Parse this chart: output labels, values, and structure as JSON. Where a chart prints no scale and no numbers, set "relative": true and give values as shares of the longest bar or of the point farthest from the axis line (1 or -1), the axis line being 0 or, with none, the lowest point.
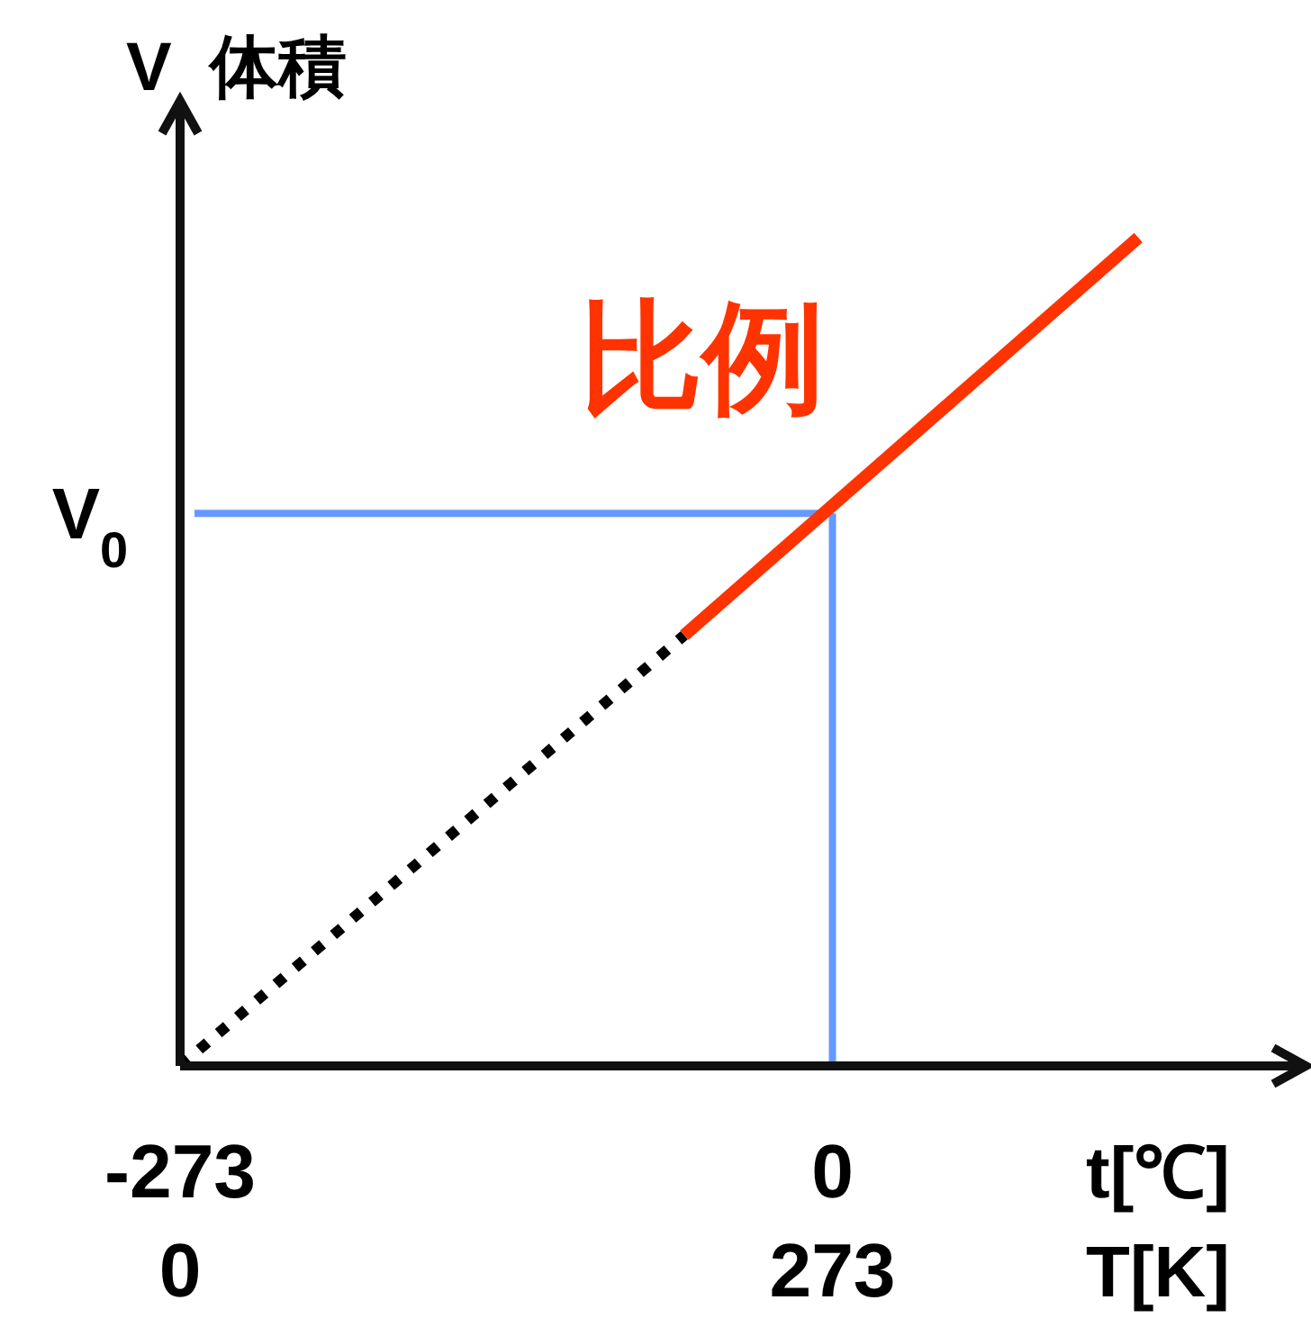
{
  "chart_data": {
    "type": "line",
    "relative": true,
    "ylabel": "V  体積",
    "xlabel": "t[℃]",
    "x2label": "T[K]",
    "xlim": [
      -273,
      198
    ],
    "xticks": [
      -273,
      0
    ],
    "x2lim": [
      0,
      471
    ],
    "x2ticks": [
      0,
      273
    ],
    "series": [
      {
        "color": "#000000",
        "line_style": "dotted",
        "x": [
          -273,
          -62
        ],
        "values": [
          0,
          0.52
        ]
      },
      {
        "color": "#ff3300",
        "line_style": "solid",
        "x": [
          -62,
          128
        ],
        "values": [
          0.52,
          1
        ]
      }
    ],
    "ref_lines": [
      {
        "axis": "y",
        "value": 0.667,
        "label": "V$_{0}$",
        "color": "#6699ff"
      },
      {
        "axis": "x",
        "value": 0,
        "color": "#6699ff"
      }
    ],
    "annotations": [
      "比例"
    ],
    "tick_labels": "x"
  }
}
